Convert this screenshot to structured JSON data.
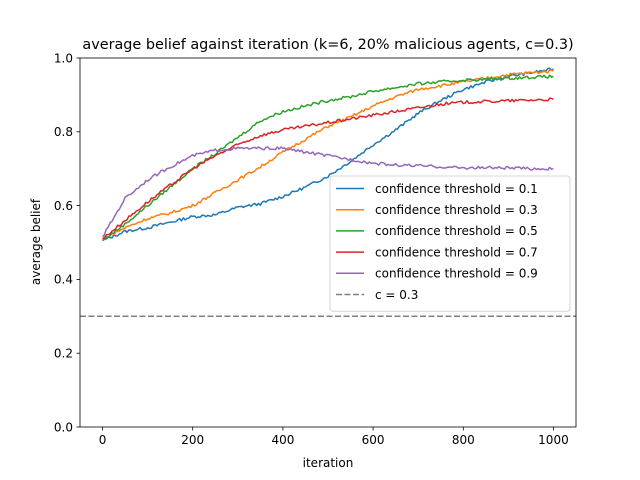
{
  "chart_data": {
    "type": "line",
    "title": "average belief against iteration (k=6, 20% malicious agents, c=0.3)",
    "xlabel": "iteration",
    "ylabel": "average belief",
    "xlim": [
      -50,
      1050
    ],
    "ylim": [
      0.0,
      1.0
    ],
    "xticks": [
      "0",
      "200",
      "400",
      "600",
      "800",
      "1000"
    ],
    "yticks": [
      "0.0",
      "0.2",
      "0.4",
      "0.6",
      "0.8",
      "1.0"
    ],
    "grid": false,
    "legend_position": "center-right",
    "x": [
      0,
      50,
      100,
      150,
      200,
      250,
      300,
      350,
      400,
      450,
      500,
      550,
      600,
      650,
      700,
      750,
      800,
      850,
      900,
      950,
      1000
    ],
    "series": [
      {
        "name": "confidence threshold = 0.1",
        "color": "#1f77b4",
        "values": [
          0.505,
          0.53,
          0.54,
          0.555,
          0.57,
          0.575,
          0.595,
          0.605,
          0.625,
          0.65,
          0.68,
          0.72,
          0.765,
          0.805,
          0.85,
          0.885,
          0.915,
          0.935,
          0.95,
          0.96,
          0.97
        ]
      },
      {
        "name": "confidence threshold = 0.3",
        "color": "#ff7f0e",
        "values": [
          0.51,
          0.54,
          0.565,
          0.58,
          0.6,
          0.635,
          0.67,
          0.705,
          0.745,
          0.78,
          0.815,
          0.84,
          0.87,
          0.895,
          0.915,
          0.925,
          0.935,
          0.945,
          0.955,
          0.96,
          0.965
        ]
      },
      {
        "name": "confidence threshold = 0.5",
        "color": "#2ca02c",
        "values": [
          0.505,
          0.55,
          0.6,
          0.65,
          0.7,
          0.74,
          0.785,
          0.83,
          0.855,
          0.87,
          0.885,
          0.895,
          0.91,
          0.92,
          0.93,
          0.935,
          0.94,
          0.942,
          0.945,
          0.948,
          0.95
        ]
      },
      {
        "name": "confidence threshold = 0.7",
        "color": "#d62728",
        "values": [
          0.51,
          0.56,
          0.61,
          0.655,
          0.7,
          0.735,
          0.765,
          0.79,
          0.805,
          0.815,
          0.825,
          0.835,
          0.845,
          0.855,
          0.865,
          0.875,
          0.88,
          0.882,
          0.884,
          0.886,
          0.888
        ]
      },
      {
        "name": "confidence threshold = 0.9",
        "color": "#9467bd",
        "values": [
          0.515,
          0.62,
          0.67,
          0.705,
          0.735,
          0.75,
          0.755,
          0.755,
          0.755,
          0.745,
          0.735,
          0.725,
          0.715,
          0.71,
          0.708,
          0.705,
          0.702,
          0.703,
          0.702,
          0.7,
          0.7
        ]
      }
    ],
    "hlines": [
      {
        "name": "c = 0.3",
        "y": 0.3,
        "color": "#808080",
        "style": "dashed"
      }
    ]
  }
}
